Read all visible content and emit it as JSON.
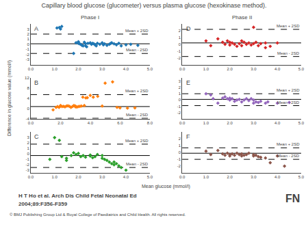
{
  "title": "Capillary blood glucose (glucometer) versus plasma glucose (hexokinase method).",
  "xlabel": "Mean glucose (mmol/l)",
  "ylabel": "Difference in glucose value (mmol/l)",
  "annotations": [
    "Phase I",
    "Phase II",
    "H T Ho et al. Arch Dis Child Fetal Neonatal Ed",
    "2004;89:F356-F359",
    "© BMJ Publishing Group Ltd & Royal College of Paediatrics and Child Health. All rights reserved.",
    "FN"
  ],
  "chart_data": [
    {
      "type": "scatter",
      "title": "A",
      "marker": "diamond",
      "grid": false,
      "x": [
        1.1,
        1.2,
        1.25,
        1.3,
        1.8,
        1.9,
        2.0,
        2.0,
        2.05,
        2.1,
        2.15,
        2.2,
        2.25,
        2.3,
        2.3,
        2.35,
        2.4,
        2.5,
        2.55,
        2.6,
        2.65,
        2.7,
        2.75,
        2.8,
        2.9,
        3.0,
        3.05,
        3.1,
        3.2,
        3.3,
        3.35,
        3.4,
        3.5,
        3.6,
        3.7,
        3.8,
        4.0,
        4.2,
        4.5
      ],
      "values": [
        3.2,
        3.3,
        3.0,
        3.5,
        -1.8,
        0.3,
        0.5,
        0.2,
        0.1,
        0.0,
        -0.2,
        -0.3,
        0.4,
        0.1,
        -0.3,
        -0.5,
        0.2,
        0.3,
        0.0,
        0.2,
        0.1,
        -0.1,
        -0.3,
        0.2,
        0.0,
        0.3,
        -0.1,
        0.1,
        -0.2,
        0.0,
        0.15,
        0.3,
        0.1,
        -0.1,
        0.2,
        -0.3,
        -0.1,
        0.0,
        -0.2
      ],
      "mean": 0.1,
      "mean_plus2sd": 2.0,
      "mean_minus2sd": -1.8,
      "annotations": [
        "Mean + 2SD",
        "Mean - 2SD"
      ],
      "xlim": [
        0,
        5.0
      ],
      "ylim": [
        -4,
        4
      ],
      "xticks": [
        {
          "value": 0,
          "label": "0.0"
        },
        {
          "value": 1.0,
          "label": "1.0"
        },
        {
          "value": 2.0,
          "label": "2.0"
        },
        {
          "value": 3.0,
          "label": "3.0"
        },
        {
          "value": 4.0,
          "label": "4.0"
        },
        {
          "value": 5.0,
          "label": "5.0"
        }
      ],
      "yticks": [
        -3,
        -2,
        -1,
        0,
        1,
        2,
        3
      ]
    },
    {
      "type": "scatter",
      "title": "B",
      "marker": "diamond",
      "grid": false,
      "x": [
        1.5,
        1.7,
        1.8,
        1.9,
        2.0,
        2.0,
        2.1,
        2.2,
        2.3,
        2.4,
        2.5,
        2.6,
        2.7,
        2.8,
        2.9,
        3.0,
        3.0,
        3.1,
        3.2,
        3.3,
        3.4,
        3.5,
        3.6,
        3.7,
        3.8,
        4.0,
        4.2,
        4.5,
        4.8,
        5.0,
        5.5,
        5.8,
        6.0,
        6.5,
        7.0
      ],
      "values": [
        -0.5,
        0.5,
        0.8,
        0.5,
        1.0,
        1.2,
        0.8,
        0.9,
        0.7,
        1.0,
        1.1,
        0.9,
        0.5,
        0.8,
        1.2,
        0.7,
        1.0,
        0.6,
        0.8,
        0.9,
        1.0,
        4.5,
        1.2,
        4.2,
        4.3,
        5.2,
        4.5,
        4.8,
        1.0,
        10.0,
        10.5,
        0.5,
        0.3,
        0.2,
        0.3
      ],
      "mean": 0.8,
      "mean_plus2sd": 5.5,
      "mean_minus2sd": -3.8,
      "annotations": [
        "Mean + 2SD",
        "Mean - 2SD"
      ],
      "xlim": [
        0,
        8.0
      ],
      "ylim": [
        -4,
        12
      ],
      "xticks": [
        {
          "value": 0,
          "label": "0.0"
        },
        {
          "value": 2.0,
          "label": "2.0"
        },
        {
          "value": 4.0,
          "label": "4.0"
        },
        {
          "value": 6.0,
          "label": "6.0"
        },
        {
          "value": 8.0,
          "label": "8.0"
        }
      ],
      "yticks": [
        -4,
        0,
        4,
        8,
        12
      ]
    },
    {
      "type": "scatter",
      "title": "C",
      "marker": "diamond",
      "grid": false,
      "x": [
        0.8,
        1.0,
        1.2,
        1.3,
        1.5,
        1.5,
        1.7,
        1.8,
        1.9,
        2.0,
        2.1,
        2.2,
        2.3,
        2.5,
        2.5,
        2.6,
        2.7,
        2.8,
        3.0,
        3.0,
        3.1,
        3.2,
        3.3,
        3.4,
        3.5,
        3.5,
        3.6,
        3.7,
        3.8,
        4.0
      ],
      "values": [
        -1.0,
        3.0,
        2.5,
        -0.5,
        -1.2,
        -0.8,
        -0.3,
        0.2,
        -0.1,
        0.1,
        -0.5,
        -0.3,
        -0.6,
        -0.4,
        -0.2,
        -0.7,
        -0.5,
        -0.1,
        -0.3,
        -0.8,
        -1.0,
        -1.2,
        -1.5,
        -1.8,
        -2.0,
        -1.5,
        -1.8,
        -2.2,
        -2.5,
        -3.0
      ],
      "mean": -0.3,
      "mean_plus2sd": 1.8,
      "mean_minus2sd": -2.5,
      "annotations": [
        "Mean + 2SD",
        "Mean - 2SD"
      ],
      "xlim": [
        0,
        5.0
      ],
      "ylim": [
        -3.5,
        4
      ],
      "xticks": [
        {
          "value": 0,
          "label": "0.0"
        },
        {
          "value": 1.0,
          "label": "1.0"
        },
        {
          "value": 2.0,
          "label": "2.0"
        },
        {
          "value": 3.0,
          "label": "3.0"
        },
        {
          "value": 4.0,
          "label": "4.0"
        },
        {
          "value": 5.0,
          "label": "5.0"
        }
      ],
      "yticks": [
        -3,
        -2,
        -1,
        0,
        1,
        2,
        3
      ]
    },
    {
      "type": "scatter",
      "title": "D",
      "marker": "diamond",
      "grid": false,
      "x": [
        1.0,
        1.2,
        1.5,
        1.7,
        1.8,
        1.9,
        2.0,
        2.0,
        2.1,
        2.2,
        2.3,
        2.4,
        2.5,
        2.5,
        2.6,
        2.7,
        2.8,
        2.9,
        3.0,
        3.0,
        3.1,
        3.2,
        3.3,
        3.5,
        3.5,
        3.7,
        4.0
      ],
      "values": [
        0.5,
        -0.2,
        0.8,
        0.3,
        0.0,
        0.5,
        0.3,
        -0.1,
        0.2,
        0.0,
        -0.3,
        0.1,
        0.5,
        -0.2,
        0.3,
        0.0,
        0.2,
        -0.1,
        0.1,
        2.5,
        0.3,
        -0.2,
        0.1,
        -0.5,
        0.2,
        -0.3,
        0.2
      ],
      "mean": 0.2,
      "mean_plus2sd": 2.2,
      "mean_minus2sd": -1.8,
      "annotations": [
        "Mean + 2SD",
        "Mean - 2SD"
      ],
      "xlim": [
        0,
        5.0
      ],
      "ylim": [
        -3,
        3
      ],
      "xticks": [
        {
          "value": 0,
          "label": "0.0"
        },
        {
          "value": 1.0,
          "label": "1.0"
        },
        {
          "value": 2.0,
          "label": "2.0"
        },
        {
          "value": 3.0,
          "label": "3.0"
        },
        {
          "value": 4.0,
          "label": "4.0"
        },
        {
          "value": 5.0,
          "label": "5.0"
        }
      ],
      "yticks": [
        -2,
        -1,
        0,
        1,
        2
      ]
    },
    {
      "type": "scatter",
      "title": "E",
      "marker": "diamond",
      "grid": false,
      "x": [
        1.0,
        1.2,
        1.3,
        1.5,
        1.7,
        1.8,
        1.9,
        2.0,
        2.0,
        2.1,
        2.2,
        2.3,
        2.4,
        2.5,
        2.6,
        2.7,
        2.8,
        2.9,
        3.0,
        3.0,
        3.1,
        3.2,
        3.3,
        3.5,
        3.6,
        4.0,
        4.5
      ],
      "values": [
        1.0,
        0.8,
        0.2,
        -0.5,
        0.3,
        0.5,
        0.2,
        0.0,
        0.3,
        0.2,
        -0.2,
        0.0,
        0.1,
        -0.3,
        0.0,
        0.2,
        -0.1,
        0.2,
        0.0,
        -0.5,
        -0.3,
        -0.4,
        -0.2,
        -0.5,
        -0.3,
        -0.5,
        -0.4
      ],
      "mean": 0.1,
      "mean_plus2sd": 1.0,
      "mean_minus2sd": -0.9,
      "annotations": [
        "Mean + 2SD",
        "Mean - 2SD"
      ],
      "xlim": [
        0,
        5.0
      ],
      "ylim": [
        -3,
        3.5
      ],
      "xticks": [
        {
          "value": 0,
          "label": "0.0"
        },
        {
          "value": 1.0,
          "label": "1.0"
        },
        {
          "value": 2.0,
          "label": "2.0"
        },
        {
          "value": 3.0,
          "label": "3.0"
        },
        {
          "value": 4.0,
          "label": "4.0"
        },
        {
          "value": 5.0,
          "label": "5.0"
        }
      ],
      "yticks": [
        -2,
        -1,
        0,
        1,
        2,
        3
      ]
    },
    {
      "type": "scatter",
      "title": "F",
      "marker": "diamond",
      "grid": false,
      "x": [
        1.0,
        1.2,
        1.5,
        1.7,
        1.8,
        1.9,
        2.0,
        2.0,
        2.1,
        2.2,
        2.3,
        2.4,
        2.5,
        2.5,
        2.6,
        2.7,
        2.8,
        3.0,
        3.0,
        3.1,
        3.2,
        3.3,
        3.5,
        3.7,
        4.0,
        4.3
      ],
      "values": [
        0.2,
        -0.3,
        0.3,
        -0.2,
        -0.4,
        -0.1,
        -0.5,
        -0.3,
        -0.2,
        -0.4,
        -0.1,
        -0.3,
        -0.5,
        -0.2,
        -0.4,
        -0.3,
        -0.1,
        -0.5,
        -0.3,
        -0.4,
        -0.6,
        -0.7,
        -0.8,
        -1.5,
        -0.5,
        -2.0
      ],
      "mean": -0.1,
      "mean_plus2sd": 0.7,
      "mean_minus2sd": -1.0,
      "annotations": [
        "Mean + 2SD",
        "Mean - 2SD"
      ],
      "xlim": [
        0,
        5.0
      ],
      "ylim": [
        -3,
        3
      ],
      "xticks": [
        {
          "value": 0,
          "label": "0.0"
        },
        {
          "value": 1.0,
          "label": "1.0"
        },
        {
          "value": 2.0,
          "label": "2.0"
        },
        {
          "value": 3.0,
          "label": "3.0"
        },
        {
          "value": 4.0,
          "label": "4.0"
        },
        {
          "value": 5.0,
          "label": "5.0"
        }
      ],
      "yticks": [
        -2,
        -1,
        0,
        1,
        2
      ]
    }
  ]
}
